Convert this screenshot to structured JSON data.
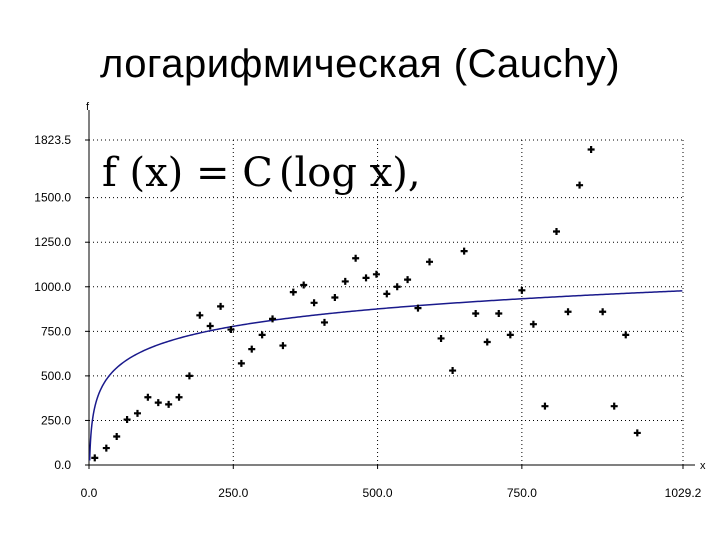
{
  "slide": {
    "title": "логарифмическая (Cauchy)"
  },
  "chart_data": {
    "type": "scatter",
    "title": "",
    "xlabel": "x",
    "ylabel": "f",
    "xlim": [
      0,
      1029.2
    ],
    "ylim": [
      0,
      1823.5
    ],
    "x_ticks": [
      "0.0",
      "250.0",
      "500.0",
      "750.0",
      "1029.2"
    ],
    "y_ticks": [
      "0.0",
      "250.0",
      "500.0",
      "750.0",
      "1000.0",
      "1250.0",
      "1500.0",
      "1823.5"
    ],
    "x_tick_values": [
      0,
      250,
      500,
      750,
      1029.2
    ],
    "y_tick_values": [
      0,
      250,
      500,
      750,
      1000,
      1250,
      1500,
      1823.5
    ],
    "grid": true,
    "formula": {
      "lhs": "f (x) = C",
      "arg": "log x",
      "tail": ","
    },
    "fit_curve": {
      "type": "logarithmic",
      "C": 140.9,
      "color": "#1a1a8c"
    },
    "points": [
      [
        10,
        40
      ],
      [
        30,
        95
      ],
      [
        48,
        160
      ],
      [
        66,
        255
      ],
      [
        84,
        290
      ],
      [
        102,
        380
      ],
      [
        120,
        350
      ],
      [
        138,
        340
      ],
      [
        156,
        380
      ],
      [
        174,
        500
      ],
      [
        192,
        840
      ],
      [
        210,
        780
      ],
      [
        228,
        890
      ],
      [
        246,
        760
      ],
      [
        264,
        570
      ],
      [
        282,
        650
      ],
      [
        300,
        730
      ],
      [
        318,
        820
      ],
      [
        336,
        670
      ],
      [
        354,
        970
      ],
      [
        372,
        1010
      ],
      [
        390,
        910
      ],
      [
        408,
        800
      ],
      [
        426,
        940
      ],
      [
        444,
        1030
      ],
      [
        462,
        1160
      ],
      [
        480,
        1050
      ],
      [
        498,
        1070
      ],
      [
        516,
        960
      ],
      [
        534,
        1000
      ],
      [
        552,
        1040
      ],
      [
        570,
        880
      ],
      [
        590,
        1140
      ],
      [
        610,
        710
      ],
      [
        630,
        530
      ],
      [
        650,
        1200
      ],
      [
        670,
        850
      ],
      [
        690,
        690
      ],
      [
        710,
        850
      ],
      [
        730,
        730
      ],
      [
        750,
        980
      ],
      [
        770,
        790
      ],
      [
        790,
        330
      ],
      [
        810,
        1310
      ],
      [
        830,
        860
      ],
      [
        850,
        1570
      ],
      [
        870,
        1770
      ],
      [
        890,
        860
      ],
      [
        910,
        330
      ],
      [
        930,
        730
      ],
      [
        950,
        180
      ]
    ]
  }
}
